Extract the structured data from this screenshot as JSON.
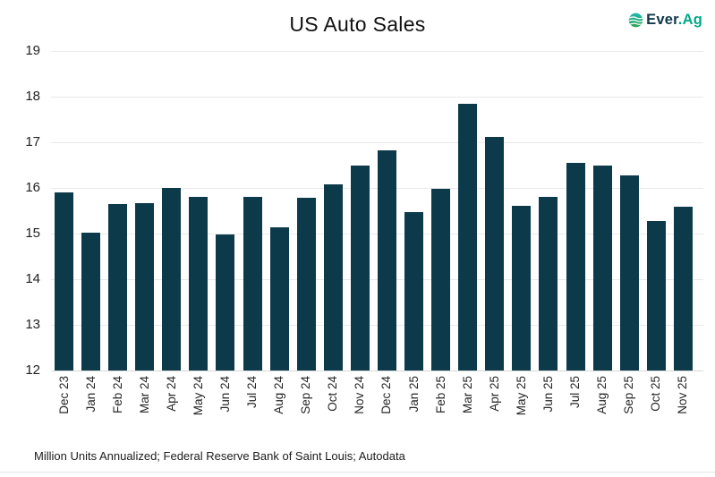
{
  "title": "US Auto Sales",
  "footnote": "Million Units Annualized; Federal Reserve Bank of Saint Louis; Autodata",
  "logo": {
    "text_primary": "Ever",
    "text_dot": ".",
    "text_secondary": "Ag",
    "icon": "everag-wave-circle-icon",
    "color_primary": "#12384c",
    "color_secondary": "#00a98a"
  },
  "colors": {
    "bar": "#0d3a4b",
    "gridline": "#e9e9e9",
    "axis_line": "#d9d9d9",
    "title_text": "#111111",
    "tick_text": "#262626",
    "logo_navy": "#12384c",
    "logo_green": "#00a98a",
    "icon_gradient_top": "#1cb8ae",
    "icon_gradient_bottom": "#2ea455"
  },
  "chart_data": {
    "type": "bar",
    "title": "US Auto Sales",
    "categories": [
      "Dec 23",
      "Jan 24",
      "Feb 24",
      "Mar 24",
      "Apr 24",
      "May 24",
      "Jun 24",
      "Jul 24",
      "Aug 24",
      "Sep 24",
      "Oct 24",
      "Nov 24",
      "Dec 24",
      "Jan 25",
      "Feb 25",
      "Mar 25",
      "Apr 25",
      "May 25",
      "Jun 25",
      "Jul 25",
      "Aug 25",
      "Sep 25",
      "Oct 25",
      "Nov 25"
    ],
    "values": [
      15.9,
      15.02,
      15.65,
      15.67,
      16.0,
      15.8,
      14.98,
      15.8,
      15.13,
      15.78,
      16.08,
      16.5,
      16.82,
      15.47,
      15.98,
      17.85,
      17.12,
      15.6,
      15.8,
      16.54,
      16.5,
      16.27,
      15.28,
      15.58
    ],
    "xlabel": "",
    "ylabel": "",
    "ylim": [
      12,
      19
    ],
    "yticks": [
      12,
      13,
      14,
      15,
      16,
      17,
      18,
      19
    ],
    "grid": "horizontal",
    "legend": "none",
    "bar_color": "#0d3a4b",
    "units": "Million Units Annualized"
  }
}
